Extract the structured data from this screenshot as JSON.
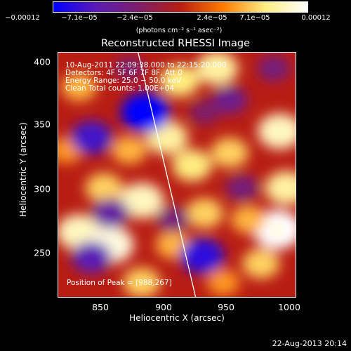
{
  "colorbar": {
    "tick_labels": [
      "−0.00012",
      "−7.1e−05",
      "−2.4e−05",
      "2.4e−05",
      "7.1e−05",
      "0.00012"
    ],
    "units": "(photons cm⁻² s⁻¹ asec⁻²)",
    "colors": [
      "#0000ff",
      "#5a1ab6",
      "#7d1e6a",
      "#b81d13",
      "#ff7a00",
      "#ffee80",
      "#ffffff"
    ]
  },
  "title": "Reconstructed RHESSI Image",
  "annotations": {
    "line1": "10-Aug-2011 22:09:38.000 to 22:15:20.000",
    "line2": "Detectors: 4F 5F 6F 7F 8F, Att 0",
    "line3": "Energy Range: 25.0 − 50.0 keV",
    "line4": "Clean     Total counts: 1.00E+04",
    "peak": "Position of Peak = [988,267]"
  },
  "axes": {
    "xlabel": "Heliocentric X (arcsec)",
    "ylabel": "Heliocentric Y (arcsec)",
    "xticks": [
      "850",
      "900",
      "950",
      "1000"
    ],
    "yticks": [
      "400",
      "350",
      "300",
      "250"
    ]
  },
  "timestamp": "22-Aug-2013 20:14",
  "chart_data": {
    "type": "heatmap",
    "title": "Reconstructed RHESSI Image",
    "xlabel": "Heliocentric X (arcsec)",
    "ylabel": "Heliocentric Y (arcsec)",
    "xlim": [
      813,
      1003
    ],
    "ylim": [
      213,
      408
    ],
    "clim": [
      -0.00012,
      0.00012
    ],
    "peak": [
      988,
      267
    ],
    "blobs": [
      {
        "x": 988,
        "y": 267,
        "v": 0.00012
      },
      {
        "x": 940,
        "y": 395,
        "v": 9e-05
      },
      {
        "x": 910,
        "y": 385,
        "v": 8e-05
      },
      {
        "x": 900,
        "y": 340,
        "v": 9e-05
      },
      {
        "x": 870,
        "y": 330,
        "v": 6e-05
      },
      {
        "x": 920,
        "y": 318,
        "v": 8e-05
      },
      {
        "x": 950,
        "y": 328,
        "v": 7e-05
      },
      {
        "x": 990,
        "y": 345,
        "v": 0.0001
      },
      {
        "x": 995,
        "y": 300,
        "v": 9e-05
      },
      {
        "x": 850,
        "y": 300,
        "v": 7e-05
      },
      {
        "x": 880,
        "y": 290,
        "v": 0.0001
      },
      {
        "x": 930,
        "y": 280,
        "v": 7e-05
      },
      {
        "x": 965,
        "y": 275,
        "v": 6e-05
      },
      {
        "x": 830,
        "y": 265,
        "v": 0.0001
      },
      {
        "x": 855,
        "y": 255,
        "v": 0.00011
      },
      {
        "x": 905,
        "y": 255,
        "v": 6e-05
      },
      {
        "x": 975,
        "y": 240,
        "v": 7e-05
      },
      {
        "x": 880,
        "y": 225,
        "v": 7e-05
      },
      {
        "x": 945,
        "y": 225,
        "v": 5e-05
      },
      {
        "x": 820,
        "y": 330,
        "v": 5e-05
      },
      {
        "x": 830,
        "y": 380,
        "v": 6e-05
      },
      {
        "x": 883,
        "y": 360,
        "v": -0.00012
      },
      {
        "x": 840,
        "y": 340,
        "v": -9e-05
      },
      {
        "x": 855,
        "y": 280,
        "v": -7e-05
      },
      {
        "x": 928,
        "y": 246,
        "v": -0.0001
      },
      {
        "x": 840,
        "y": 245,
        "v": -8e-05
      },
      {
        "x": 950,
        "y": 370,
        "v": -6e-05
      },
      {
        "x": 960,
        "y": 300,
        "v": -5e-05
      },
      {
        "x": 905,
        "y": 275,
        "v": -5e-05
      },
      {
        "x": 985,
        "y": 395,
        "v": -5e-05
      },
      {
        "x": 930,
        "y": 360,
        "v": -4e-05
      },
      {
        "x": 870,
        "y": 395,
        "v": -4e-05
      }
    ],
    "limb_line": [
      [
        877,
        408
      ],
      [
        923,
        213
      ]
    ]
  }
}
